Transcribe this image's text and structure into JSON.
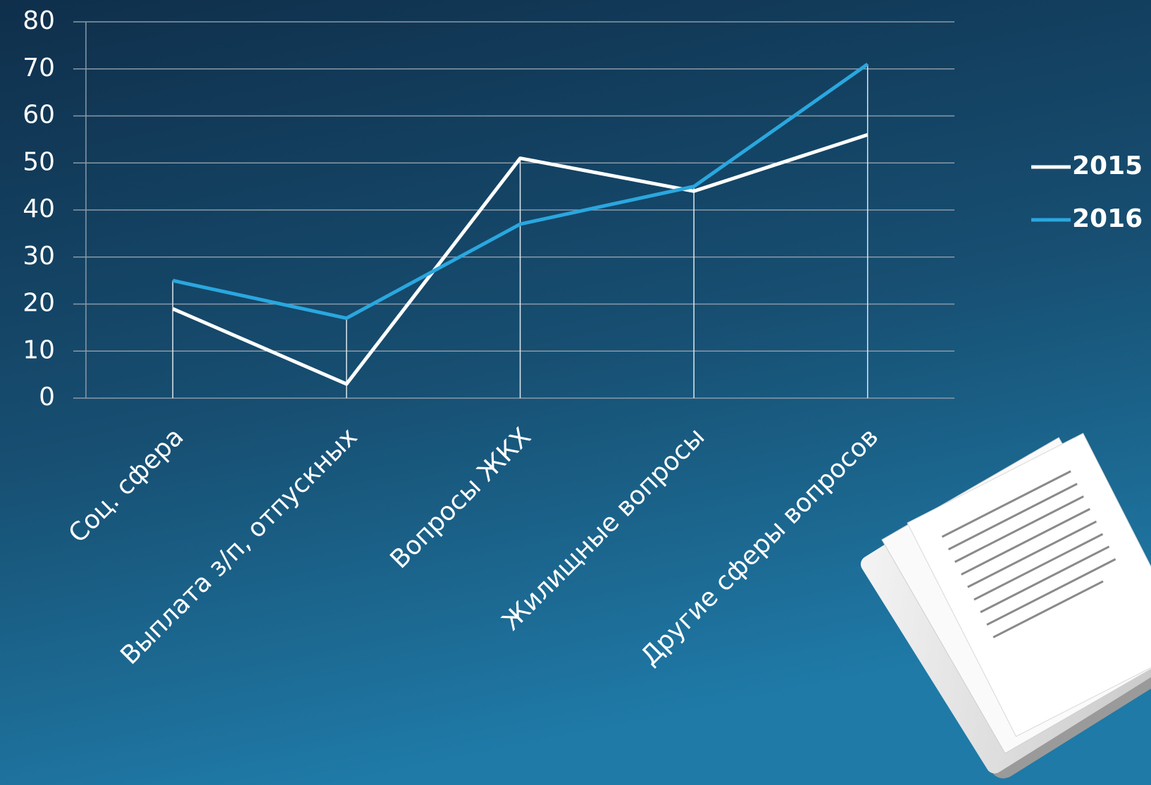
{
  "chart_data": {
    "type": "line",
    "categories": [
      "Соц. сфера",
      "Выплата з/п, отпускных",
      "Вопросы ЖКХ",
      "Жилищные вопросы",
      "Другие сферы вопросов"
    ],
    "series": [
      {
        "name": "2015",
        "color": "#ffffff",
        "values": [
          19,
          3,
          51,
          44,
          56
        ]
      },
      {
        "name": "2016",
        "color": "#2aa7df",
        "values": [
          25,
          17,
          37,
          45,
          71
        ]
      }
    ],
    "ylim": [
      0,
      80
    ],
    "yticks": [
      0,
      10,
      20,
      30,
      40,
      50,
      60,
      70,
      80
    ],
    "grid": true,
    "legend": "right"
  }
}
